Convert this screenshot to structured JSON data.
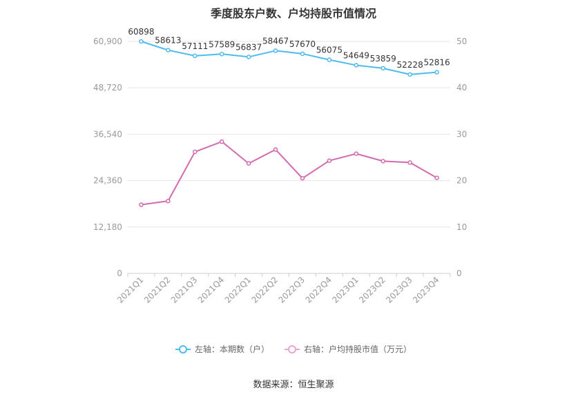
{
  "chart_data": {
    "type": "line",
    "title": "季度股东户数、户均持股市值情况",
    "categories": [
      "2021Q1",
      "2021Q2",
      "2021Q3",
      "2021Q4",
      "2022Q1",
      "2022Q2",
      "2022Q3",
      "2022Q4",
      "2023Q1",
      "2023Q2",
      "2023Q3",
      "2023Q4"
    ],
    "series": [
      {
        "name": "左轴：本期数（户）",
        "axis": "left",
        "color": "#4dbbed",
        "values": [
          60898,
          58613,
          57111,
          57589,
          56837,
          58467,
          57670,
          56075,
          54649,
          53859,
          52228,
          52816
        ],
        "data_labels": [
          "60898",
          "58613",
          "57111",
          "57589",
          "56837",
          "58467",
          "57670",
          "56075",
          "54649",
          "53859",
          "52228",
          "52816"
        ]
      },
      {
        "name": "右轴：户均持股市值（万元）",
        "axis": "right",
        "color": "#d36aad",
        "values": [
          14.8,
          15.6,
          26.2,
          28.4,
          23.7,
          26.7,
          20.5,
          24.3,
          25.8,
          24.2,
          23.9,
          20.6
        ]
      }
    ],
    "left_axis": {
      "ylim": [
        0,
        60900
      ],
      "ticks": [
        0,
        12180,
        24360,
        36540,
        48720,
        60900
      ],
      "tick_labels": [
        "0",
        "12,180",
        "24,360",
        "36,540",
        "48,720",
        "60,900"
      ]
    },
    "right_axis": {
      "ylim": [
        0,
        50
      ],
      "ticks": [
        0,
        10,
        20,
        30,
        40,
        50
      ],
      "tick_labels": [
        "0",
        "10",
        "20",
        "30",
        "40",
        "50"
      ]
    },
    "grid": true,
    "legend_position": "bottom"
  },
  "source_text": "数据来源：恒生聚源"
}
